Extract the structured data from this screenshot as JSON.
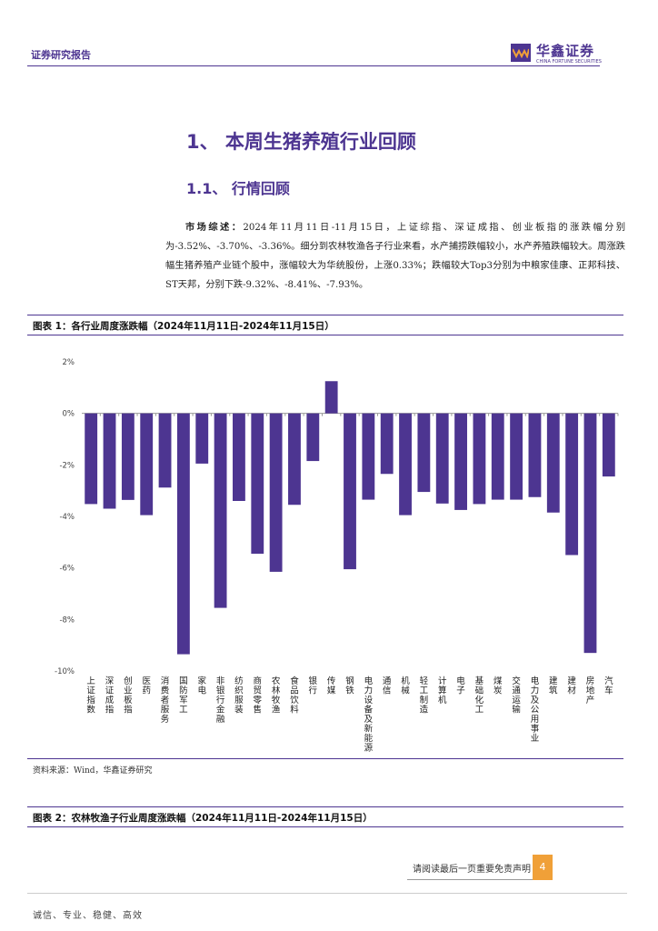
{
  "header": {
    "report_type": "证券研究报告",
    "logo_cn": "华鑫证券",
    "logo_en": "CHINA FORTUNE SECURITIES"
  },
  "section": {
    "h1": "1、 本周生猪养殖行业回顾",
    "h2": "1.1、 行情回顾"
  },
  "summary": {
    "lead": "市场综述：",
    "body": "2024年11月11日-11月15日，上证综指、深证成指、创业板指的涨跌幅分别为-3.52%、-3.70%、-3.36%。细分到农林牧渔各子行业来看，水产捕捞跌幅较小，水产养殖跌幅较大。周涨跌幅生猪养殖产业链个股中，涨幅较大为华统股份，上涨0.33%；跌幅较大Top3分别为中粮家佳康、正邦科技、ST天邦，分别下跌-9.32%、-8.41%、-7.93%。"
  },
  "figure1": {
    "title": "图表 1：各行业周度涨跌幅（2024年11月11日-2024年11月15日）",
    "source": "资料来源：Wind，华鑫证券研究"
  },
  "figure2": {
    "title": "图表 2：农林牧渔子行业周度涨跌幅（2024年11月11日-2024年11月15日）"
  },
  "chart_data": {
    "type": "bar",
    "title": "各行业周度涨跌幅（2024年11月11日-2024年11月15日）",
    "xlabel": "",
    "ylabel": "",
    "ylim": [
      -10,
      2
    ],
    "yticks": [
      "2%",
      "0%",
      "-2%",
      "-4%",
      "-6%",
      "-8%",
      "-10%"
    ],
    "ytick_values": [
      2,
      0,
      -2,
      -4,
      -6,
      -8,
      -10
    ],
    "bar_color": "#4d3591",
    "categories": [
      "上证指数",
      "深证成指",
      "创业板指",
      "医药",
      "消费者服务",
      "国防军工",
      "家电",
      "非银行金融",
      "纺织服装",
      "商贸零售",
      "农林牧渔",
      "食品饮料",
      "银行",
      "传媒",
      "钢铁",
      "电力设备及新能源",
      "通信",
      "机械",
      "轻工制造",
      "计算机",
      "电子",
      "基础化工",
      "煤炭",
      "交通运输",
      "电力及公用事业",
      "建筑",
      "建材",
      "房地产",
      "汽车"
    ],
    "values": [
      -3.52,
      -3.7,
      -3.36,
      -3.95,
      -2.88,
      -9.35,
      -1.95,
      -7.55,
      -3.4,
      -5.45,
      -6.15,
      -3.55,
      -1.85,
      1.25,
      -6.05,
      -3.35,
      -2.35,
      -3.95,
      -3.05,
      -3.5,
      -3.75,
      -3.52,
      -3.35,
      -3.35,
      -3.25,
      -3.85,
      -5.5,
      -9.3,
      -2.45
    ]
  },
  "footer": {
    "disclaimer": "请阅读最后一页重要免责声明",
    "page_number": "4",
    "motto": "诚信、专业、稳健、高效"
  }
}
